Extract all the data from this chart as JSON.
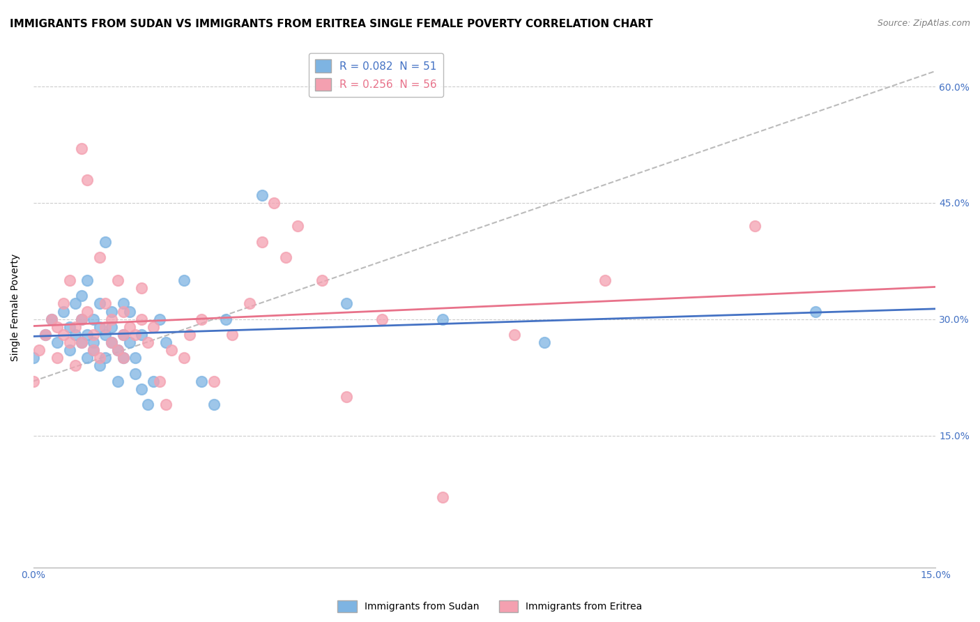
{
  "title": "IMMIGRANTS FROM SUDAN VS IMMIGRANTS FROM ERITREA SINGLE FEMALE POVERTY CORRELATION CHART",
  "source": "Source: ZipAtlas.com",
  "ylabel": "Single Female Poverty",
  "yticks": [
    0.0,
    0.15,
    0.3,
    0.45,
    0.6
  ],
  "ytick_labels": [
    "",
    "15.0%",
    "30.0%",
    "45.0%",
    "60.0%"
  ],
  "xlim": [
    0.0,
    0.15
  ],
  "ylim": [
    -0.02,
    0.65
  ],
  "sudan_R": 0.082,
  "sudan_N": 51,
  "eritrea_R": 0.256,
  "eritrea_N": 56,
  "sudan_color": "#7EB4E2",
  "eritrea_color": "#F4A0B0",
  "sudan_line_color": "#4472C4",
  "eritrea_line_color": "#E8728A",
  "sudan_x": [
    0.0,
    0.002,
    0.003,
    0.004,
    0.005,
    0.006,
    0.006,
    0.007,
    0.007,
    0.008,
    0.008,
    0.008,
    0.009,
    0.009,
    0.009,
    0.01,
    0.01,
    0.01,
    0.011,
    0.011,
    0.011,
    0.012,
    0.012,
    0.012,
    0.013,
    0.013,
    0.013,
    0.014,
    0.014,
    0.015,
    0.015,
    0.015,
    0.016,
    0.016,
    0.017,
    0.017,
    0.018,
    0.018,
    0.019,
    0.02,
    0.021,
    0.022,
    0.025,
    0.028,
    0.03,
    0.032,
    0.038,
    0.052,
    0.068,
    0.085,
    0.13
  ],
  "sudan_y": [
    0.25,
    0.28,
    0.3,
    0.27,
    0.31,
    0.26,
    0.29,
    0.28,
    0.32,
    0.3,
    0.27,
    0.33,
    0.25,
    0.28,
    0.35,
    0.26,
    0.3,
    0.27,
    0.24,
    0.29,
    0.32,
    0.25,
    0.28,
    0.4,
    0.27,
    0.31,
    0.29,
    0.26,
    0.22,
    0.28,
    0.25,
    0.32,
    0.27,
    0.31,
    0.25,
    0.23,
    0.28,
    0.21,
    0.19,
    0.22,
    0.3,
    0.27,
    0.35,
    0.22,
    0.19,
    0.3,
    0.46,
    0.32,
    0.3,
    0.27,
    0.31
  ],
  "eritrea_x": [
    0.0,
    0.001,
    0.002,
    0.003,
    0.004,
    0.004,
    0.005,
    0.005,
    0.006,
    0.006,
    0.007,
    0.007,
    0.008,
    0.008,
    0.008,
    0.009,
    0.009,
    0.01,
    0.01,
    0.011,
    0.011,
    0.012,
    0.012,
    0.013,
    0.013,
    0.014,
    0.014,
    0.015,
    0.015,
    0.015,
    0.016,
    0.017,
    0.018,
    0.018,
    0.019,
    0.02,
    0.021,
    0.022,
    0.023,
    0.025,
    0.026,
    0.028,
    0.03,
    0.033,
    0.036,
    0.038,
    0.04,
    0.042,
    0.044,
    0.048,
    0.052,
    0.058,
    0.068,
    0.08,
    0.095,
    0.12
  ],
  "eritrea_y": [
    0.22,
    0.26,
    0.28,
    0.3,
    0.25,
    0.29,
    0.28,
    0.32,
    0.27,
    0.35,
    0.29,
    0.24,
    0.3,
    0.27,
    0.52,
    0.31,
    0.48,
    0.26,
    0.28,
    0.25,
    0.38,
    0.29,
    0.32,
    0.27,
    0.3,
    0.26,
    0.35,
    0.28,
    0.25,
    0.31,
    0.29,
    0.28,
    0.3,
    0.34,
    0.27,
    0.29,
    0.22,
    0.19,
    0.26,
    0.25,
    0.28,
    0.3,
    0.22,
    0.28,
    0.32,
    0.4,
    0.45,
    0.38,
    0.42,
    0.35,
    0.2,
    0.3,
    0.07,
    0.28,
    0.35,
    0.42
  ],
  "background_color": "#FFFFFF",
  "grid_color": "#CCCCCC",
  "title_fontsize": 11,
  "label_fontsize": 10,
  "tick_fontsize": 10,
  "legend_fontsize": 11
}
